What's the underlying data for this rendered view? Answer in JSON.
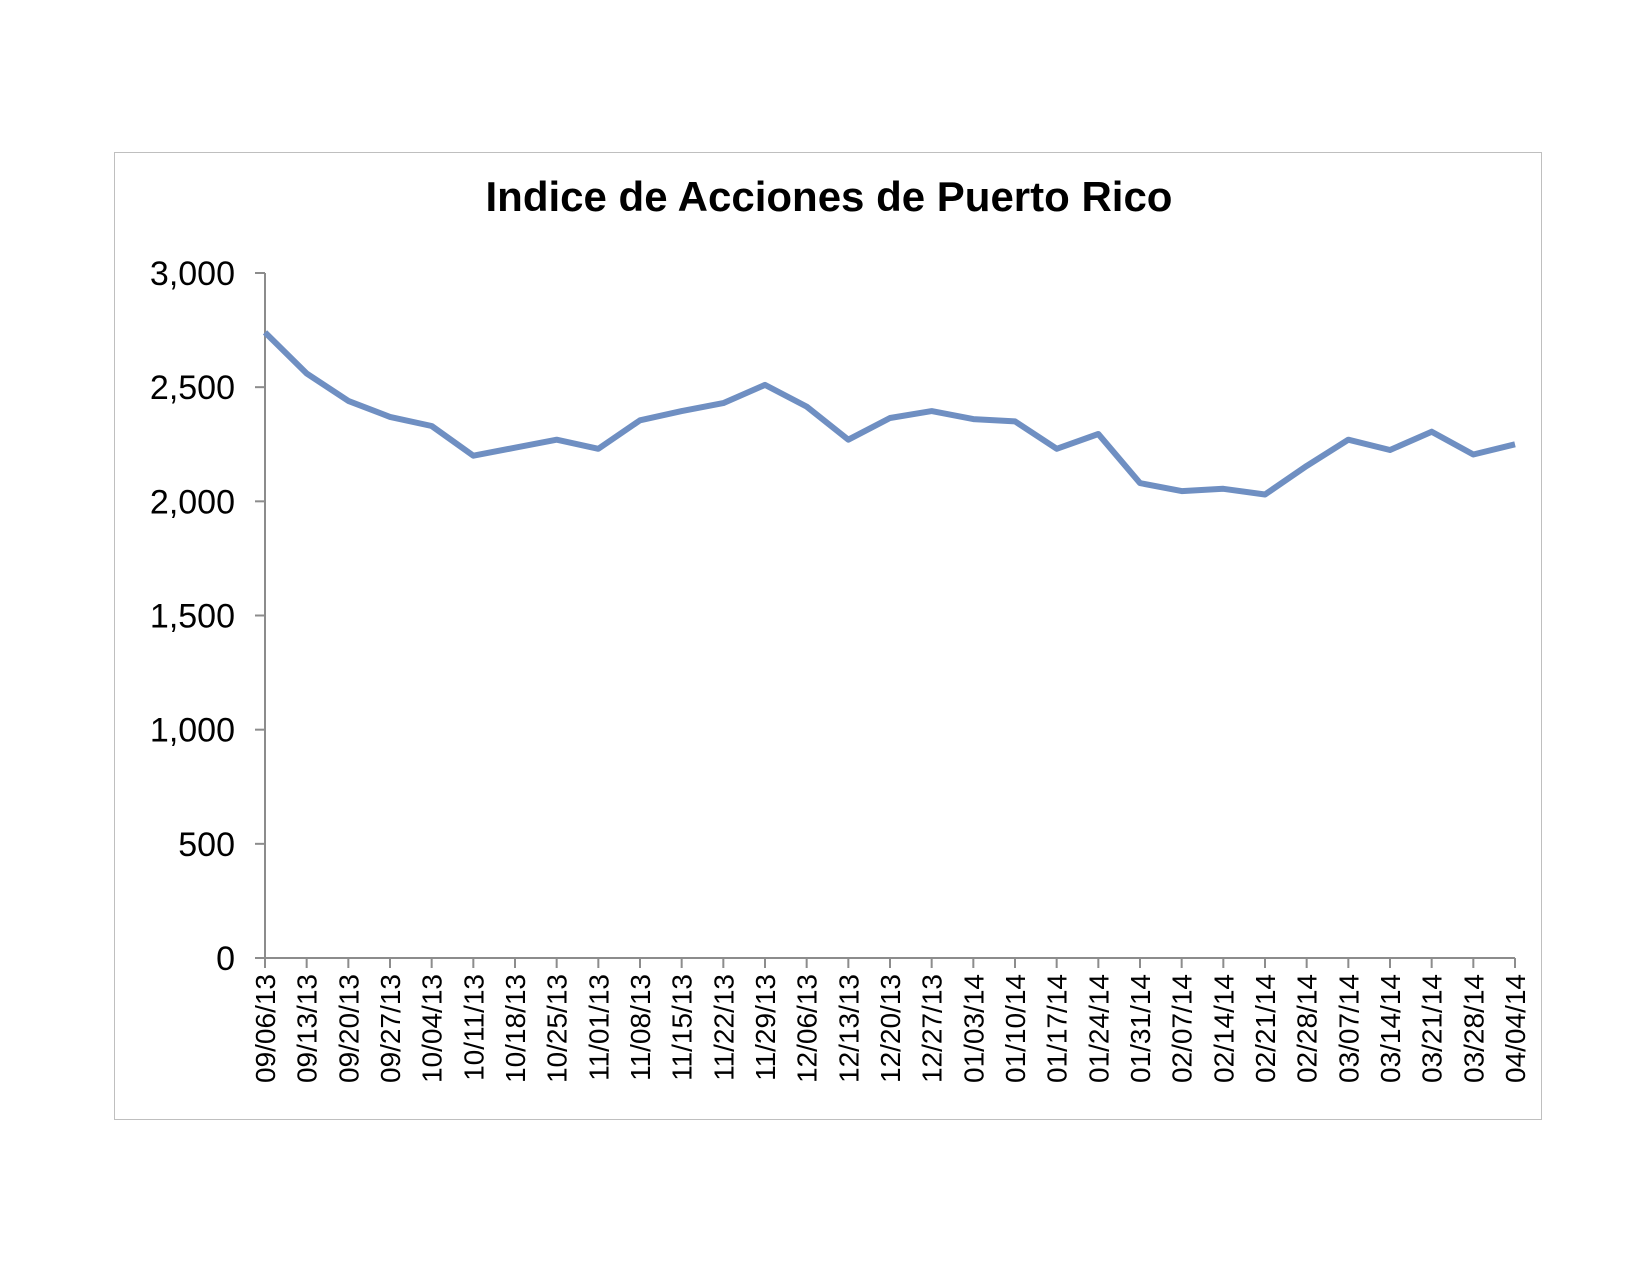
{
  "chart_data": {
    "type": "line",
    "title": "Indice de Acciones de Puerto Rico",
    "xlabel": "",
    "ylabel": "",
    "ylim": [
      0,
      3000
    ],
    "yticks": [
      0,
      500,
      1000,
      1500,
      2000,
      2500,
      3000
    ],
    "ytick_labels": [
      "0",
      "500",
      "1,000",
      "1,500",
      "2,000",
      "2,500",
      "3,000"
    ],
    "grid": false,
    "legend": "none",
    "categories": [
      "09/06/13",
      "09/13/13",
      "09/20/13",
      "09/27/13",
      "10/04/13",
      "10/11/13",
      "10/18/13",
      "10/25/13",
      "11/01/13",
      "11/08/13",
      "11/15/13",
      "11/22/13",
      "11/29/13",
      "12/06/13",
      "12/13/13",
      "12/20/13",
      "12/27/13",
      "01/03/14",
      "01/10/14",
      "01/17/14",
      "01/24/14",
      "01/31/14",
      "02/07/14",
      "02/14/14",
      "02/21/14",
      "02/28/14",
      "03/07/14",
      "03/14/14",
      "03/21/14",
      "03/28/14",
      "04/04/14"
    ],
    "series": [
      {
        "color": "#6f8fc2",
        "values": [
          2740,
          2560,
          2440,
          2370,
          2330,
          2200,
          2235,
          2270,
          2230,
          2355,
          2395,
          2430,
          2510,
          2415,
          2270,
          2365,
          2395,
          2360,
          2350,
          2230,
          2295,
          2080,
          2045,
          2055,
          2030,
          2155,
          2270,
          2225,
          2305,
          2205,
          2250
        ]
      }
    ]
  }
}
